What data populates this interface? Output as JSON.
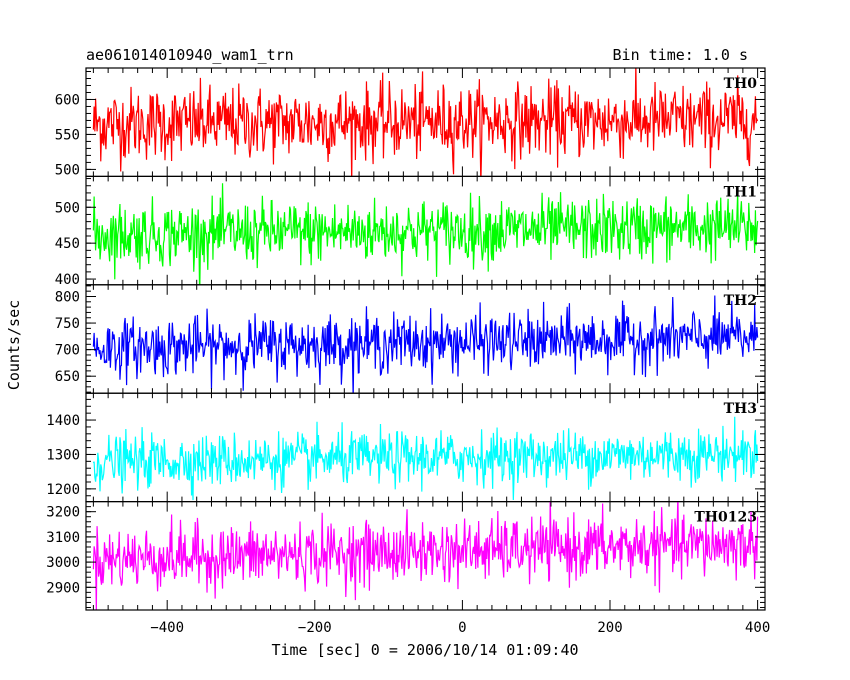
{
  "header": {
    "title": "ae061014010940_wam1_trn",
    "bin_time": "Bin time: 1.0 s"
  },
  "chart_data": {
    "type": "line",
    "title": "ae061014010940_wam1_trn",
    "subtitle": "Bin time: 1.0 s",
    "xlabel": "Time [sec] 0 = 2006/10/14 01:09:40",
    "ylabel": "Counts/sec",
    "xlim": [
      -510,
      410
    ],
    "x_ticks": [
      -400,
      -200,
      0,
      200,
      400
    ],
    "x_tick_labels": [
      "−400",
      "−200",
      "0",
      "200",
      "400"
    ],
    "x_range_of_data": [
      -500,
      400
    ],
    "x_step": 1,
    "series": [
      {
        "name": "TH0",
        "color": "#ff0000",
        "ylim": [
          490,
          645
        ],
        "yticks": [
          500,
          550,
          600
        ],
        "mean": 565,
        "noise_sd": 26,
        "trend": 6
      },
      {
        "name": "TH1",
        "color": "#00ff00",
        "ylim": [
          392,
          543
        ],
        "yticks": [
          400,
          450,
          500
        ],
        "mean": 462,
        "noise_sd": 22,
        "trend": 10
      },
      {
        "name": "TH2",
        "color": "#0000ff",
        "ylim": [
          618,
          822
        ],
        "yticks": [
          650,
          700,
          750,
          800
        ],
        "mean": 703,
        "noise_sd": 27,
        "trend": 20
      },
      {
        "name": "TH3",
        "color": "#00ffff",
        "ylim": [
          1163,
          1478
        ],
        "yticks": [
          1200,
          1300,
          1400
        ],
        "mean": 1278,
        "noise_sd": 38,
        "trend": 25
      },
      {
        "name": "TH0123",
        "color": "#ff00ff",
        "ylim": [
          2810,
          3240
        ],
        "yticks": [
          2900,
          3000,
          3100,
          3200
        ],
        "mean": 3012,
        "noise_sd": 62,
        "trend": 60
      }
    ]
  }
}
